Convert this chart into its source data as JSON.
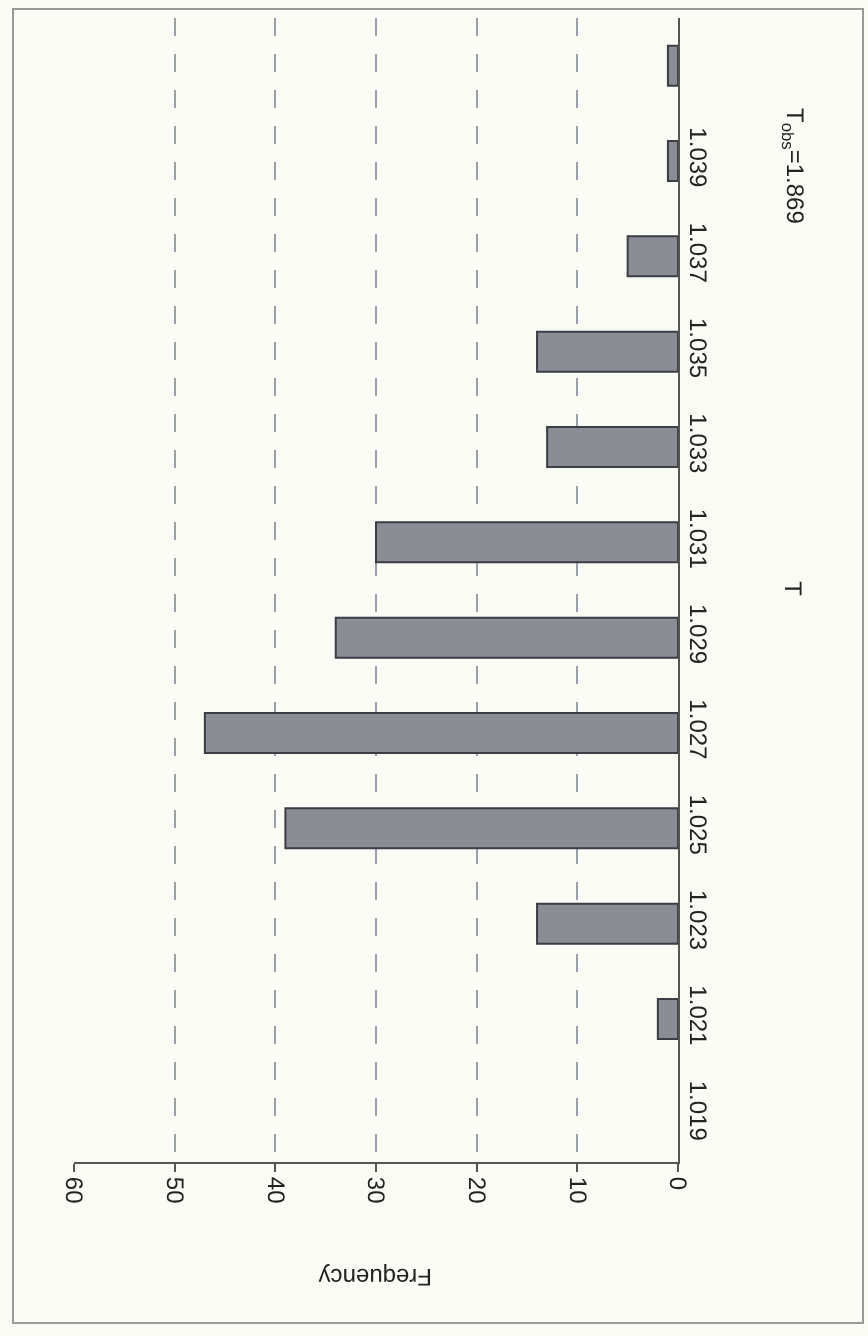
{
  "chart_data": {
    "type": "bar",
    "orientation": "horizontal",
    "xlabel": "Frequency",
    "ylabel": "T",
    "categories": [
      null,
      "1.039",
      "1.037",
      "1.035",
      "1.033",
      "1.031",
      "1.029",
      "1.027",
      "1.025",
      "1.023",
      "1.021",
      "1.019"
    ],
    "values": [
      1,
      1,
      5,
      14,
      13,
      30,
      34,
      47,
      39,
      14,
      2,
      0
    ],
    "color": "#8a8d94",
    "xlim": [
      60,
      0
    ],
    "xticks": [
      0,
      10,
      20,
      30,
      40,
      50,
      60
    ],
    "grid": "x",
    "annotations": [
      "T$_{obs}$=1.869"
    ]
  }
}
